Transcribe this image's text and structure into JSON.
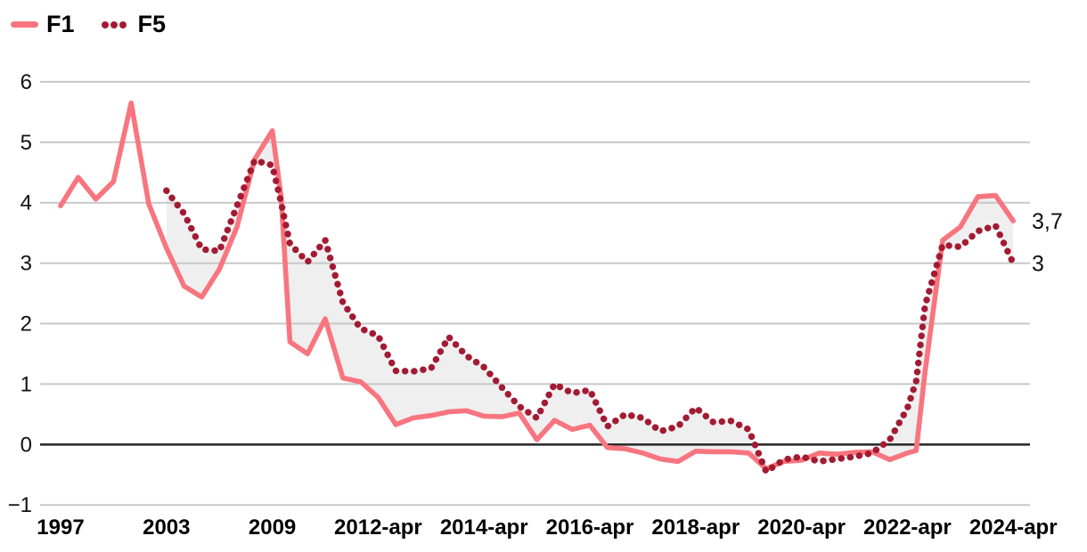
{
  "legend": {
    "items": [
      {
        "label": "F1",
        "swatch": "line"
      },
      {
        "label": "F5",
        "swatch": "dots"
      }
    ]
  },
  "chart_data": {
    "type": "line",
    "title": "",
    "xlabel": "",
    "ylabel": "",
    "ylim": [
      -1,
      6
    ],
    "grid": "horizontal",
    "legend_position": "top-left",
    "colors": {
      "f1": "#f8757f",
      "f5": "#a31b33",
      "band": "#efefef",
      "gridline": "#c7c7c7",
      "zeroline": "#2e2e2e",
      "text": "#111111"
    },
    "y_axis": {
      "ticks": [
        6,
        5,
        4,
        3,
        2,
        1,
        0,
        -1
      ],
      "labels": [
        "6",
        "5",
        "4",
        "3",
        "2",
        "1",
        "0",
        "−1"
      ]
    },
    "x_axis": {
      "labels": [
        "1997",
        "2003",
        "2009",
        "2012-apr",
        "2014-apr",
        "2016-apr",
        "2018-apr",
        "2020-apr",
        "2022-apr",
        "2024-apr"
      ],
      "indices": [
        0,
        6,
        12,
        18,
        24,
        30,
        36,
        42,
        48,
        54
      ]
    },
    "series": [
      {
        "name": "F1",
        "style": "solid",
        "points": [
          [
            0,
            3.95
          ],
          [
            1,
            4.42
          ],
          [
            2,
            4.06
          ],
          [
            3,
            4.35
          ],
          [
            4,
            5.65
          ],
          [
            5,
            3.98
          ],
          [
            6,
            3.25
          ],
          [
            7,
            2.62
          ],
          [
            8,
            2.44
          ],
          [
            9,
            2.9
          ],
          [
            10,
            3.6
          ],
          [
            11,
            4.72
          ],
          [
            12,
            5.19
          ],
          [
            12.5,
            4.1
          ],
          [
            13,
            1.7
          ],
          [
            14,
            1.5
          ],
          [
            15,
            2.08
          ],
          [
            16,
            1.1
          ],
          [
            17,
            1.04
          ],
          [
            18,
            0.78
          ],
          [
            19,
            0.33
          ],
          [
            20,
            0.44
          ],
          [
            21,
            0.48
          ],
          [
            22,
            0.54
          ],
          [
            23,
            0.56
          ],
          [
            24,
            0.47
          ],
          [
            25,
            0.46
          ],
          [
            26,
            0.52
          ],
          [
            27,
            0.08
          ],
          [
            28,
            0.4
          ],
          [
            29,
            0.25
          ],
          [
            30,
            0.32
          ],
          [
            31,
            -0.05
          ],
          [
            32,
            -0.07
          ],
          [
            33,
            -0.14
          ],
          [
            34,
            -0.24
          ],
          [
            35,
            -0.28
          ],
          [
            36,
            -0.11
          ],
          [
            37,
            -0.12
          ],
          [
            38,
            -0.12
          ],
          [
            39,
            -0.14
          ],
          [
            40,
            -0.4
          ],
          [
            41,
            -0.28
          ],
          [
            42,
            -0.26
          ],
          [
            43,
            -0.14
          ],
          [
            44,
            -0.16
          ],
          [
            45,
            -0.13
          ],
          [
            46,
            -0.12
          ],
          [
            47,
            -0.25
          ],
          [
            48,
            -0.14
          ],
          [
            48.5,
            -0.1
          ],
          [
            49,
            1.2
          ],
          [
            50,
            3.38
          ],
          [
            51,
            3.6
          ],
          [
            52,
            4.1
          ],
          [
            53,
            4.12
          ],
          [
            54,
            3.7
          ]
        ]
      },
      {
        "name": "F5",
        "style": "dotted",
        "points": [
          [
            6,
            4.2
          ],
          [
            7,
            3.82
          ],
          [
            8,
            3.23
          ],
          [
            9,
            3.2
          ],
          [
            10,
            3.95
          ],
          [
            11,
            4.7
          ],
          [
            12,
            4.62
          ],
          [
            12.5,
            4.0
          ],
          [
            13,
            3.32
          ],
          [
            14,
            3.02
          ],
          [
            15,
            3.38
          ],
          [
            16,
            2.35
          ],
          [
            17,
            1.92
          ],
          [
            18,
            1.8
          ],
          [
            19,
            1.22
          ],
          [
            20,
            1.21
          ],
          [
            21,
            1.26
          ],
          [
            22,
            1.78
          ],
          [
            23,
            1.47
          ],
          [
            24,
            1.28
          ],
          [
            25,
            0.95
          ],
          [
            26,
            0.63
          ],
          [
            27,
            0.44
          ],
          [
            28,
            1.0
          ],
          [
            29,
            0.85
          ],
          [
            30,
            0.9
          ],
          [
            31,
            0.3
          ],
          [
            32,
            0.5
          ],
          [
            33,
            0.44
          ],
          [
            34,
            0.22
          ],
          [
            35,
            0.3
          ],
          [
            36,
            0.61
          ],
          [
            37,
            0.37
          ],
          [
            38,
            0.39
          ],
          [
            39,
            0.25
          ],
          [
            40,
            -0.45
          ],
          [
            41,
            -0.25
          ],
          [
            42,
            -0.2
          ],
          [
            43,
            -0.28
          ],
          [
            44,
            -0.24
          ],
          [
            45,
            -0.2
          ],
          [
            46,
            -0.14
          ],
          [
            47,
            0.08
          ],
          [
            48,
            0.6
          ],
          [
            48.5,
            1.05
          ],
          [
            49,
            2.3
          ],
          [
            50,
            3.3
          ],
          [
            51,
            3.27
          ],
          [
            52,
            3.53
          ],
          [
            53,
            3.62
          ],
          [
            54,
            3.0
          ]
        ]
      }
    ],
    "end_labels": [
      {
        "series": "F1",
        "text": "3,7",
        "value": 3.7
      },
      {
        "series": "F5",
        "text": "3",
        "value": 3.0
      }
    ]
  }
}
